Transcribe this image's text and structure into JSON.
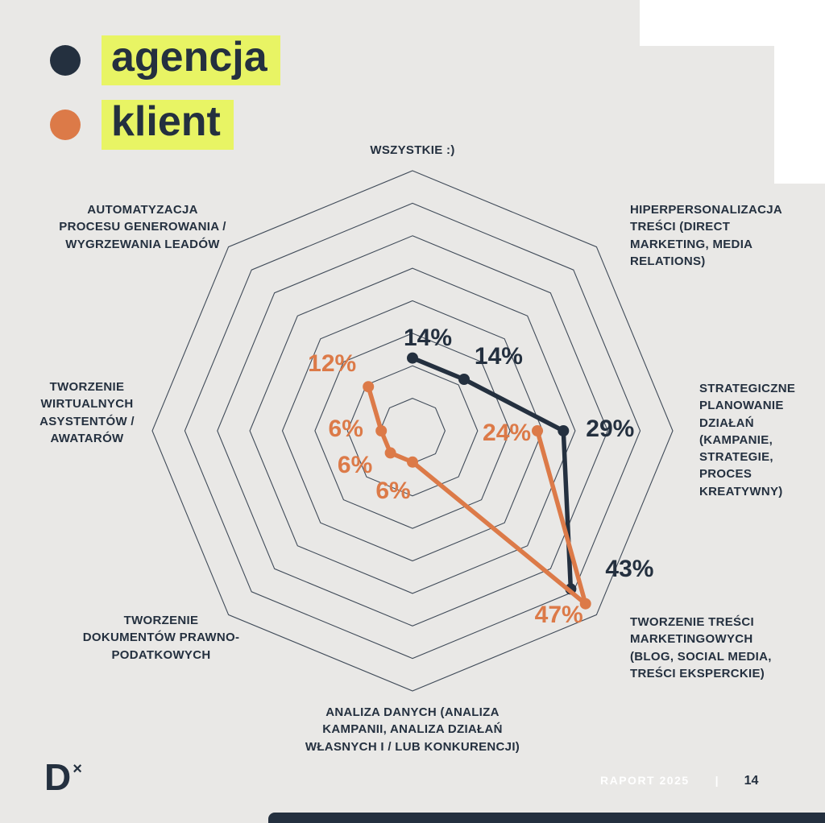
{
  "page": {
    "background_color": "#e9e8e6",
    "accent_navy": "#24303f",
    "accent_orange": "#dc7a48",
    "highlight_yellow": "#e8f464",
    "footer": {
      "report_label": "RAPORT 2025",
      "separator": "|",
      "page_number": "14"
    },
    "logo": {
      "letter": "D",
      "mark": "×"
    }
  },
  "legend": {
    "items": [
      {
        "label": "agencja",
        "color": "#24303f"
      },
      {
        "label": "klient",
        "color": "#dc7a48"
      }
    ]
  },
  "chart_data": {
    "type": "radar",
    "grid": "concentric-octagons",
    "rings": 8,
    "max_value": 50,
    "unit": "%",
    "legend_position": "top-left",
    "axes": [
      "WSZYSTKIE :)",
      "HIPERPERSONALIZACJA\nTREŚCI (DIRECT\nMARKETING, MEDIA\nRELATIONS)",
      "STRATEGICZNE\nPLANOWANIE\nDZIAŁAŃ\n(KAMPANIE,\nSTRATEGIE,\nPROCES\nKREATYWNY)",
      "TWORZENIE TREŚCI\nMARKETINGOWYCH\n(BLOG, SOCIAL MEDIA,\nTREŚCI EKSPERCKIE)",
      "ANALIZA DANYCH (ANALIZA\nKAMPANII, ANALIZA DZIAŁAŃ\nWŁASNYCH I / LUB KONKURENCJI)",
      "TWORZENIE\nDOKUMENTÓW PRAWNO-\nPODATKOWYCH",
      "TWORZENIE\nWIRTUALNYCH\nASYSTENTÓW /\nAWATARÓW",
      "AUTOMATYZACJA\nPROCESU GENEROWANIA /\nWYGRZEWANIA LEADÓW"
    ],
    "series": [
      {
        "name": "agencja",
        "color": "#24303f",
        "values": [
          14,
          14,
          29,
          43,
          null,
          null,
          null,
          null
        ]
      },
      {
        "name": "klient",
        "color": "#dc7a48",
        "values": [
          null,
          null,
          24,
          47,
          6,
          6,
          6,
          12
        ]
      }
    ]
  }
}
